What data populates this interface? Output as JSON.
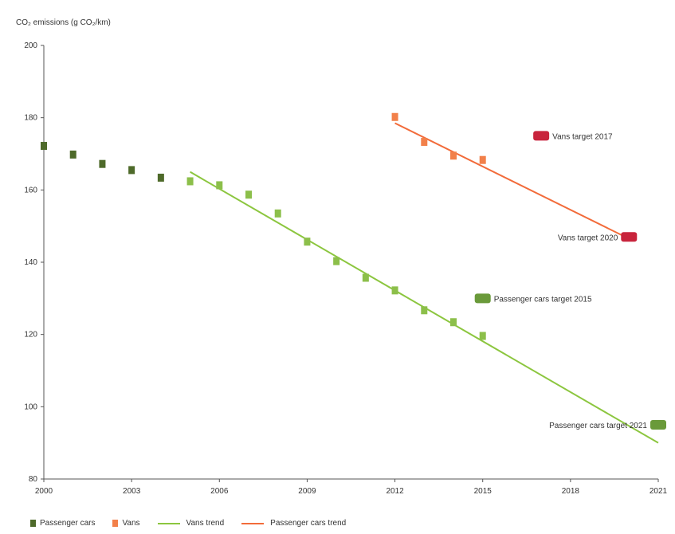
{
  "chart_data": {
    "type": "scatter",
    "ylabel": "CO₂ emissions (g CO₂/km)",
    "xlim": [
      2000,
      2021
    ],
    "ylim": [
      80,
      200
    ],
    "x_ticks": [
      2000,
      2003,
      2006,
      2009,
      2012,
      2015,
      2018,
      2021
    ],
    "y_ticks": [
      80,
      100,
      120,
      140,
      160,
      180,
      200
    ],
    "grid": false,
    "legend_position": "bottom",
    "series": [
      {
        "name": "Passenger cars",
        "kind": "points",
        "color": "#4e6a2a",
        "points": [
          {
            "x": 2000,
            "y": 172.2
          },
          {
            "x": 2001,
            "y": 169.8
          },
          {
            "x": 2002,
            "y": 167.2
          },
          {
            "x": 2003,
            "y": 165.5
          },
          {
            "x": 2004,
            "y": 163.4
          }
        ]
      },
      {
        "name": "",
        "kind": "points",
        "color": "#8cbf4a",
        "points": [
          {
            "x": 2005,
            "y": 162.4
          },
          {
            "x": 2006,
            "y": 161.3
          },
          {
            "x": 2007,
            "y": 158.7
          },
          {
            "x": 2008,
            "y": 153.5
          },
          {
            "x": 2009,
            "y": 145.7
          },
          {
            "x": 2010,
            "y": 140.3
          },
          {
            "x": 2011,
            "y": 135.7
          },
          {
            "x": 2012,
            "y": 132.2
          },
          {
            "x": 2013,
            "y": 126.7
          },
          {
            "x": 2014,
            "y": 123.4
          },
          {
            "x": 2015,
            "y": 119.6
          }
        ]
      },
      {
        "name": "Vans",
        "kind": "points",
        "color": "#f2804a",
        "points": [
          {
            "x": 2012,
            "y": 180.2
          },
          {
            "x": 2013,
            "y": 173.3
          },
          {
            "x": 2014,
            "y": 169.5
          },
          {
            "x": 2015,
            "y": 168.3
          }
        ]
      },
      {
        "name": "Vans trend",
        "kind": "line",
        "color": "#8cc63f",
        "points": [
          {
            "x": 2005,
            "y": 165
          },
          {
            "x": 2021,
            "y": 90
          }
        ]
      },
      {
        "name": "Passenger cars trend",
        "kind": "line",
        "color": "#f26b3a",
        "points": [
          {
            "x": 2012,
            "y": 178.5
          },
          {
            "x": 2020,
            "y": 146.5
          }
        ]
      }
    ],
    "targets": [
      {
        "label": "Vans target 2017",
        "x": 2017,
        "y": 175,
        "color": "#c8243c",
        "label_side": "right"
      },
      {
        "label": "Vans target 2020",
        "x": 2020,
        "y": 147,
        "color": "#c8243c",
        "label_side": "left"
      },
      {
        "label": "Passenger cars target 2015",
        "x": 2015,
        "y": 130,
        "color": "#6a9a3a",
        "label_side": "right"
      },
      {
        "label": "Passenger cars target 2021",
        "x": 2021,
        "y": 95,
        "color": "#6a9a3a",
        "label_side": "left"
      }
    ],
    "legend": [
      {
        "label": "Passenger cars",
        "kind": "square",
        "color": "#4e6a2a"
      },
      {
        "label": "Vans",
        "kind": "square",
        "color": "#f2804a"
      },
      {
        "label": "Vans trend",
        "kind": "line",
        "color": "#8cc63f"
      },
      {
        "label": "Passenger cars trend",
        "kind": "line",
        "color": "#f26b3a"
      }
    ]
  }
}
